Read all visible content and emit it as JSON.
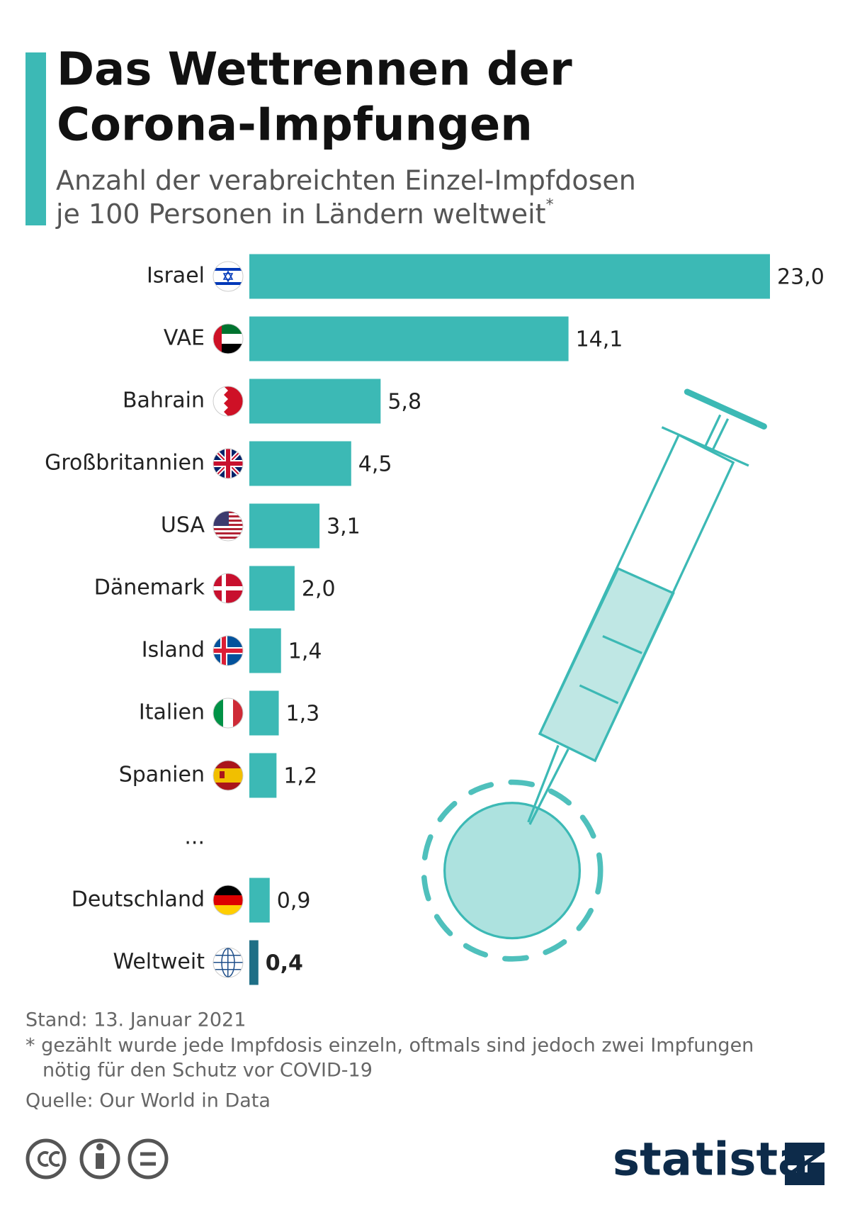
{
  "chart_data": {
    "type": "bar",
    "orientation": "horizontal",
    "title": [
      "Das Wettrennen der",
      "Corona-Impfungen"
    ],
    "subtitle": [
      "Anzahl der verabreichten Einzel-Impfdosen",
      "je 100 Personen in Ländern weltweit"
    ],
    "subtitle_mark": "*",
    "categories": [
      "Israel",
      "VAE",
      "Bahrain",
      "Großbritannien",
      "USA",
      "Dänemark",
      "Island",
      "Italien",
      "Spanien",
      "...",
      "Deutschland",
      "Weltweit"
    ],
    "values": [
      23.0,
      14.1,
      5.8,
      4.5,
      3.1,
      2.0,
      1.4,
      1.3,
      1.2,
      null,
      0.9,
      0.4
    ],
    "value_labels": [
      "23,0",
      "14,1",
      "5,8",
      "4,5",
      "3,1",
      "2,0",
      "1,4",
      "1,3",
      "1,2",
      null,
      "0,9",
      "0,4"
    ],
    "colors": [
      "#3cb9b5",
      "#3cb9b5",
      "#3cb9b5",
      "#3cb9b5",
      "#3cb9b5",
      "#3cb9b5",
      "#3cb9b5",
      "#3cb9b5",
      "#3cb9b5",
      null,
      "#3cb9b5",
      "#1f6f86"
    ],
    "date": "Stand: 13. Januar 2021",
    "note": [
      "* gezählt wurde jede Impfdosis einzeln, oftmals sind jedoch zwei Impfungen",
      "nötig für den Schutz vor COVID-19"
    ],
    "source": "Quelle: Our World in Data"
  },
  "brand": "statista"
}
